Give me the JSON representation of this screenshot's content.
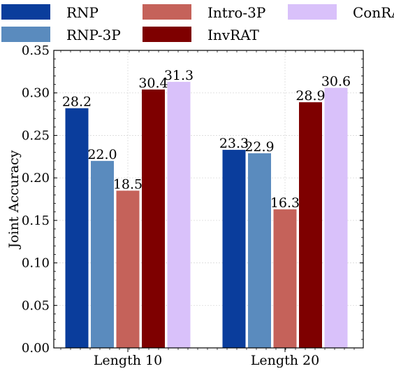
{
  "chart_data": {
    "type": "bar",
    "categories": [
      "Length 10",
      "Length 20"
    ],
    "series": [
      {
        "name": "RNP",
        "values": [
          0.282,
          0.233
        ],
        "labels": [
          "28.2",
          "23.3"
        ],
        "color": "#0a3d9c"
      },
      {
        "name": "RNP-3P",
        "values": [
          0.22,
          0.229
        ],
        "labels": [
          "22.0",
          "22.9"
        ],
        "color": "#5a8bbe"
      },
      {
        "name": "Intro-3P",
        "values": [
          0.185,
          0.163
        ],
        "labels": [
          "18.5",
          "16.3"
        ],
        "color": "#c5625a"
      },
      {
        "name": "InvRAT",
        "values": [
          0.304,
          0.289
        ],
        "labels": [
          "30.4",
          "28.9"
        ],
        "color": "#7e0000"
      },
      {
        "name": "ConRAT",
        "values": [
          0.313,
          0.306
        ],
        "labels": [
          "31.3",
          "30.6"
        ],
        "color": "#d9c1fa"
      }
    ],
    "ylabel": "Joint Accuracy",
    "xlabel": "",
    "ylim": [
      0,
      0.35
    ],
    "yticks": [
      "0.00",
      "0.05",
      "0.10",
      "0.15",
      "0.20",
      "0.25",
      "0.30",
      "0.35"
    ],
    "grid": true,
    "legend": "top"
  }
}
